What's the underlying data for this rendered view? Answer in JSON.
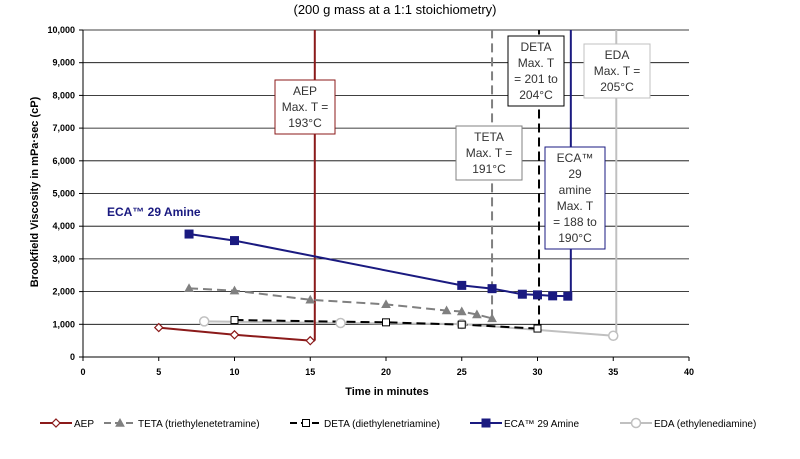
{
  "chart_data": {
    "type": "line",
    "subtitle": "(200 g mass at a 1:1 stoichiometry)",
    "xlabel": "Time in minutes",
    "ylabel": "Brookfield Viscosity in mPa·sec (cP)",
    "xlim": [
      0,
      40
    ],
    "ylim": [
      0,
      10000
    ],
    "x_ticks": [
      "0",
      "5",
      "10",
      "15",
      "20",
      "25",
      "30",
      "35",
      "40"
    ],
    "y_ticks": [
      "0",
      "1,000",
      "2,000",
      "3,000",
      "4,000",
      "5,000",
      "6,000",
      "7,000",
      "8,000",
      "9,000",
      "10,000"
    ],
    "grid": "horizontal",
    "legend_position": "bottom",
    "series": [
      {
        "key": "aep",
        "name": "AEP",
        "color": "#8B1A1A",
        "marker": "diamond-open",
        "dash": "solid",
        "points": [
          [
            5,
            900
          ],
          [
            10,
            680
          ],
          [
            15,
            500
          ]
        ],
        "vertical_x": 15.3
      },
      {
        "key": "teta",
        "name": "TETA (triethylenetetramine)",
        "color": "#808080",
        "marker": "triangle-filled",
        "dash": "dashed",
        "points": [
          [
            7,
            2100
          ],
          [
            10,
            2030
          ],
          [
            15,
            1750
          ],
          [
            20,
            1610
          ],
          [
            24,
            1420
          ],
          [
            25,
            1390
          ],
          [
            26,
            1300
          ],
          [
            27,
            1180
          ]
        ],
        "vertical_x": 27
      },
      {
        "key": "deta",
        "name": "DETA (diethylenetriamine)",
        "color": "#000000",
        "marker": "square-open",
        "dash": "dashed",
        "points": [
          [
            10,
            1130
          ],
          [
            20,
            1060
          ],
          [
            25,
            990
          ],
          [
            30,
            870
          ]
        ],
        "vertical_x": 30.1
      },
      {
        "key": "eca",
        "name": "ECA™ 29 Amine",
        "color": "#1a1a80",
        "marker": "square-filled",
        "dash": "solid",
        "points": [
          [
            7,
            3760
          ],
          [
            10,
            3560
          ],
          [
            25,
            2190
          ],
          [
            27,
            2090
          ],
          [
            29,
            1920
          ],
          [
            30,
            1900
          ],
          [
            31,
            1870
          ],
          [
            32,
            1860
          ]
        ],
        "vertical_x": 32.2
      },
      {
        "key": "eda",
        "name": "EDA (ethylenediamine)",
        "color": "#c0c0c0",
        "marker": "circle-open",
        "dash": "solid",
        "points": [
          [
            8,
            1090
          ],
          [
            17,
            1040
          ],
          [
            25,
            1010
          ],
          [
            35,
            650
          ]
        ],
        "vertical_x": 35.2
      }
    ],
    "annotations": [
      {
        "key": "aep",
        "color": "#8B1A1A",
        "lines": [
          "AEP",
          "Max. T =",
          "193°C"
        ]
      },
      {
        "key": "teta",
        "color": "#808080",
        "lines": [
          "TETA",
          "Max. T =",
          "191°C"
        ]
      },
      {
        "key": "deta",
        "color": "#000000",
        "lines": [
          "DETA",
          "Max. T",
          "= 201 to",
          "204°C"
        ]
      },
      {
        "key": "eda",
        "color": "#c0c0c0",
        "lines": [
          "EDA",
          "Max. T =",
          "205°C"
        ]
      },
      {
        "key": "eca",
        "color": "#1a1a80",
        "lines": [
          "ECA™",
          "29",
          "amine",
          "Max. T",
          "= 188 to",
          "190°C"
        ]
      }
    ],
    "inline_label": "ECA™ 29 Amine"
  }
}
